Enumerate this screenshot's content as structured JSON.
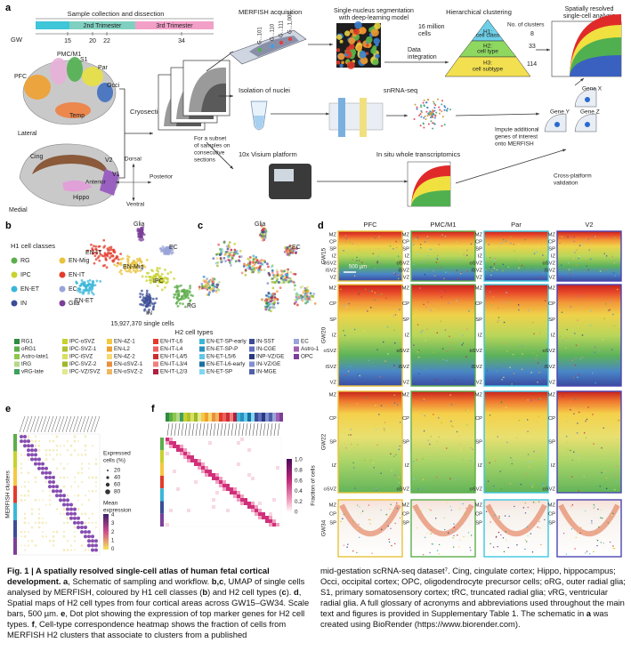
{
  "panel_labels": [
    "a",
    "b",
    "c",
    "d",
    "e",
    "f"
  ],
  "panel_a": {
    "timeline_title": "Sample collection and dissection",
    "trimesters": [
      "2nd Trimester",
      "3rd Trimester"
    ],
    "gw_label": "GW",
    "gw_ticks": [
      "15",
      "20",
      "22",
      "34"
    ],
    "brain_regions": [
      "PMC/M1",
      "S1",
      "PFC",
      "Par",
      "Occi",
      "Temp"
    ],
    "lateral": "Lateral",
    "medial_regions": [
      "Cing",
      "V2",
      "V1",
      "Hippo"
    ],
    "medial": "Medial",
    "cryosection": "Cryosection",
    "subset_note": [
      "For a subset",
      "of samples on",
      "consecutive",
      "sections"
    ],
    "axes": [
      "Dorsal",
      "Anterior",
      "Posterior",
      "Ventral"
    ],
    "merfish": "MERFISH acquisition",
    "genes": [
      "G...101",
      "G...110",
      "G...111",
      "G...1,000"
    ],
    "segmentation": [
      "Single-nucleus segmentation",
      "with deep-learning model"
    ],
    "data_integration": [
      "Data",
      "integration"
    ],
    "clustering": "Hierarchical clustering",
    "cells": [
      "16 million",
      "cells"
    ],
    "levels": [
      [
        "H1:",
        "cell class"
      ],
      [
        "H2:",
        "cell type"
      ],
      [
        "H3:",
        "cell subtype"
      ]
    ],
    "clusters_title": "No. of clusters",
    "cluster_counts": [
      "8",
      "33",
      "114"
    ],
    "spatial": [
      "Spatially resolved",
      "single-cell analysis"
    ],
    "nuclei": "Isolation of nuclei",
    "snrna": "snRNA-seq",
    "impute": [
      "Impute additional",
      "genes of interest",
      "onto MERFISH"
    ],
    "genes_xyz": [
      "Gene X",
      "Gene Y",
      "Gene Z"
    ],
    "visium": "10x Visium platform",
    "insitu": "In situ whole transcriptomics",
    "validation": [
      "Cross-platform",
      "validation"
    ]
  },
  "panel_b": {
    "legend_title": "H1 cell classes",
    "classes": [
      {
        "label": "RG",
        "color": "#5dae4b"
      },
      {
        "label": "EN-Mig",
        "color": "#e8c23a"
      },
      {
        "label": "IPC",
        "color": "#c8d12e"
      },
      {
        "label": "EN-IT",
        "color": "#e23b2a"
      },
      {
        "label": "EN-ET",
        "color": "#3ab7d8"
      },
      {
        "label": "EC",
        "color": "#9aa4d8"
      },
      {
        "label": "IN",
        "color": "#3c4d96"
      },
      {
        "label": "Glia",
        "color": "#7b3f98"
      }
    ],
    "umap_labels": [
      "Glia",
      "EN-IT",
      "EN-Mig",
      "EC",
      "IPC",
      "EN-ET",
      "RG",
      "IN"
    ],
    "cell_count": "15,927,370 single cells"
  },
  "panel_c": {
    "umap_labels": [
      "Glia",
      "EC"
    ]
  },
  "h2_types": {
    "title": "H2 cell types",
    "columns": [
      [
        {
          "label": "RG1",
          "color": "#2e8b3e"
        },
        {
          "label": "oRG1",
          "color": "#5dae4b"
        },
        {
          "label": "Astro-late1",
          "color": "#8cc84b"
        },
        {
          "label": "tRG",
          "color": "#b5d88a"
        },
        {
          "label": "vRG-late",
          "color": "#3f9f5f"
        }
      ],
      [
        {
          "label": "IPC-oSVZ",
          "color": "#c8d12e"
        },
        {
          "label": "IPC-SVZ-1",
          "color": "#b0c030"
        },
        {
          "label": "IPC-iSVZ",
          "color": "#d8e060"
        },
        {
          "label": "IPC-SVZ-2",
          "color": "#9db82a"
        },
        {
          "label": "IPC-VZ/SVZ",
          "color": "#e0e890"
        }
      ],
      [
        {
          "label": "EN-4Z-1",
          "color": "#f5c842"
        },
        {
          "label": "EN-L2",
          "color": "#f0a030"
        },
        {
          "label": "EN-4Z-2",
          "color": "#f8d870"
        },
        {
          "label": "EN-oSVZ-1",
          "color": "#e89040"
        },
        {
          "label": "EN-oSVZ-2",
          "color": "#f0b860"
        }
      ],
      [
        {
          "label": "EN-IT-L6",
          "color": "#e23b2a"
        },
        {
          "label": "EN-IT-L4",
          "color": "#f06060"
        },
        {
          "label": "EN-IT-L4/5",
          "color": "#c83030"
        },
        {
          "label": "EN-IT-L3/4",
          "color": "#f08080"
        },
        {
          "label": "EN-IT-L2/3",
          "color": "#b02040"
        }
      ],
      [
        {
          "label": "EN-ET-SP-early",
          "color": "#3ab7d8"
        },
        {
          "label": "EN-ET-SP-P",
          "color": "#2a90c0"
        },
        {
          "label": "EN-ET-L5/6",
          "color": "#60c8e8"
        },
        {
          "label": "EN-ET-L6-early",
          "color": "#1a70a0"
        },
        {
          "label": "EN-ET-SP",
          "color": "#80d8f0"
        }
      ],
      [
        {
          "label": "IN-SST",
          "color": "#3c4d96"
        },
        {
          "label": "IN-CGE",
          "color": "#6070c0"
        },
        {
          "label": "INP-VZ/GE",
          "color": "#2a3a80"
        },
        {
          "label": "IN-VZ/GE",
          "color": "#8090d0"
        },
        {
          "label": "IN-MGE",
          "color": "#5060a8"
        }
      ],
      [
        {
          "label": "EC",
          "color": "#9aa4d8"
        },
        {
          "label": "Astro-1",
          "color": "#a060b0"
        },
        {
          "label": "OPC",
          "color": "#7b3f98"
        }
      ]
    ]
  },
  "panel_d": {
    "areas": [
      {
        "label": "PFC",
        "color": "#e8c23a"
      },
      {
        "label": "PMC/M1",
        "color": "#5dae4b"
      },
      {
        "label": "Par",
        "color": "#3ec6e0"
      },
      {
        "label": "V2",
        "color": "#4a46b0"
      }
    ],
    "stages": [
      {
        "label": "GW15",
        "layers": [
          "MZ",
          "CP",
          "SP",
          "IZ",
          "oSVZ",
          "iSVZ",
          "VZ"
        ]
      },
      {
        "label": "GW20",
        "layers": [
          "MZ",
          "CP",
          "SP",
          "IZ",
          "oSVZ",
          "iSVZ",
          "VZ"
        ]
      },
      {
        "label": "GW22",
        "layers": [
          "MZ",
          "CP",
          "SP",
          "IZ",
          "oSVZ"
        ]
      },
      {
        "label": "GW34",
        "layers": [
          "MZ",
          "CP",
          "SP"
        ]
      }
    ],
    "scale_bar": "500 µm"
  },
  "panel_e": {
    "y_title": "MERFISH clusters",
    "size_title": [
      "Expressed",
      "cells (%)"
    ],
    "size_ticks": [
      "20",
      "40",
      "60",
      "80"
    ],
    "color_title": [
      "Mean",
      "expression"
    ],
    "color_ticks": [
      "4",
      "3",
      "2",
      "1",
      "0"
    ]
  },
  "panel_f": {
    "colorbar_ticks": [
      "1.0",
      "0.8",
      "0.6",
      "0.4",
      "0.2",
      "0"
    ],
    "colorbar_title": "Fraction of cells"
  },
  "caption": {
    "left": [
      {
        "text": "Fig. 1 | A spatially resolved single-cell atlas of human fetal cortical development. a",
        "bold": true
      },
      {
        "text": ", Schematic of sampling and workflow. ",
        "bold": false
      },
      {
        "text": "b,c",
        "bold": true
      },
      {
        "text": ", UMAP of single cells analysed by MERFISH, coloured by H1 cell classes (",
        "bold": false
      },
      {
        "text": "b",
        "bold": true
      },
      {
        "text": ") and H2 cell types (",
        "bold": false
      },
      {
        "text": "c",
        "bold": true
      },
      {
        "text": "). ",
        "bold": false
      },
      {
        "text": "d",
        "bold": true
      },
      {
        "text": ", Spatial maps of H2 cell types from four cortical areas across GW15–GW34. Scale bars, 500 µm. ",
        "bold": false
      },
      {
        "text": "e",
        "bold": true
      },
      {
        "text": ", Dot plot showing the expression of top marker genes for H2 cell types. ",
        "bold": false
      },
      {
        "text": "f",
        "bold": true
      },
      {
        "text": ", Cell-type correspondence heatmap shows the fraction of cells from MERFISH H2 clusters that associate to clusters from a published",
        "bold": false
      }
    ],
    "right": [
      {
        "text": "mid-gestation scRNA-seq dataset⁷. Cing, cingulate cortex; Hippo, hippocampus; Occi, occipital cortex; OPC, oligodendrocyte precursor cells; oRG, outer radial glia; S1, primary somatosensory cortex; tRC, truncated radial glia; vRG, ventricular radial glia. A full glossary of acronyms and abbreviations used throughout the main text and figures is provided in Supplementary Table 1. The schematic in ",
        "bold": false
      },
      {
        "text": "a",
        "bold": true
      },
      {
        "text": " was created using BioRender (https://www.biorender.com).",
        "bold": false
      }
    ]
  }
}
